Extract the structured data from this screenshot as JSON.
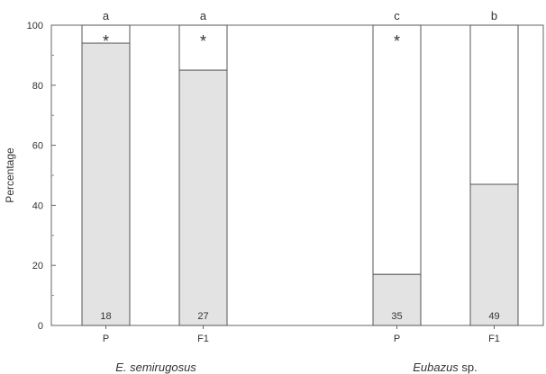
{
  "chart_data": {
    "type": "bar",
    "stacked": true,
    "ylabel": "Percentage",
    "ylim": [
      0,
      100
    ],
    "yticks": [
      "0",
      "20",
      "40",
      "60",
      "80",
      "100"
    ],
    "grid": false,
    "bar_fill_color": "#e3e3e3",
    "bar_empty_color": "#ffffff",
    "bar_stroke_color": "#555555",
    "groups": [
      {
        "label": "E. semirugosus",
        "bars": [
          {
            "category": "P",
            "value": 94,
            "n": "18",
            "letter": "a",
            "star": "*"
          },
          {
            "category": "F1",
            "value": 85,
            "n": "27",
            "letter": "a",
            "star": "*"
          }
        ]
      },
      {
        "label": "Eubazus sp.",
        "bars": [
          {
            "category": "P",
            "value": 17,
            "n": "35",
            "letter": "c",
            "star": "*"
          },
          {
            "category": "F1",
            "value": 47,
            "n": "49",
            "letter": "b",
            "star": ""
          }
        ]
      }
    ]
  }
}
